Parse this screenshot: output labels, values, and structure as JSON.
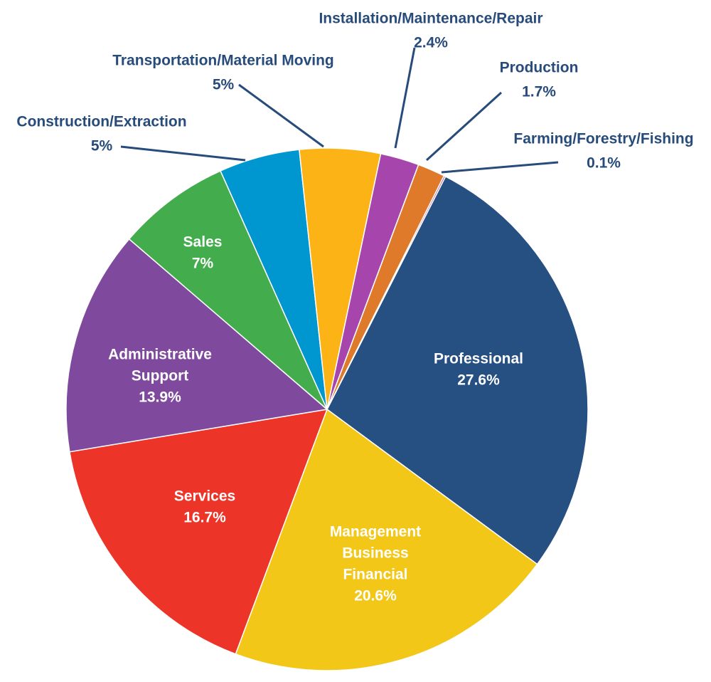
{
  "chart_data": {
    "type": "pie",
    "slices": [
      {
        "label": "Professional",
        "label_lines": [
          "Professional"
        ],
        "value": 27.6,
        "value_label": "27.6%",
        "color": "#264f82",
        "label_placement": "inside"
      },
      {
        "label": "Management Business Financial",
        "label_lines": [
          "Management",
          "Business",
          "Financial"
        ],
        "value": 20.6,
        "value_label": "20.6%",
        "color": "#f2c718",
        "label_placement": "inside"
      },
      {
        "label": "Services",
        "label_lines": [
          "Services"
        ],
        "value": 16.7,
        "value_label": "16.7%",
        "color": "#ec3528",
        "label_placement": "inside"
      },
      {
        "label": "Administrative Support",
        "label_lines": [
          "Administrative",
          "Support"
        ],
        "value": 13.9,
        "value_label": "13.9%",
        "color": "#7f4a9d",
        "label_placement": "inside"
      },
      {
        "label": "Sales",
        "label_lines": [
          "Sales"
        ],
        "value": 7,
        "value_label": "7%",
        "color": "#43ac4c",
        "label_placement": "inside"
      },
      {
        "label": "Construction/Extraction",
        "label_lines": [
          "Construction/Extraction"
        ],
        "value": 5,
        "value_label": "5%",
        "color": "#0096cf",
        "label_placement": "outside"
      },
      {
        "label": "Transportation/Material Moving",
        "label_lines": [
          "Transportation/Material Moving"
        ],
        "value": 5,
        "value_label": "5%",
        "color": "#fbb316",
        "label_placement": "outside"
      },
      {
        "label": "Installation/Maintenance/Repair",
        "label_lines": [
          "Installation/Maintenance/Repair"
        ],
        "value": 2.4,
        "value_label": "2.4%",
        "color": "#a646ad",
        "label_placement": "outside"
      },
      {
        "label": "Production",
        "label_lines": [
          "Production"
        ],
        "value": 1.7,
        "value_label": "1.7%",
        "color": "#df7a2a",
        "label_placement": "outside"
      },
      {
        "label": "Farming/Forestry/Fishing",
        "label_lines": [
          "Farming/Forestry/Fishing"
        ],
        "value": 0.1,
        "value_label": "0.1%",
        "color": "#b0409f",
        "label_placement": "outside"
      }
    ],
    "inside_label_color": "#ffffff",
    "outside_label_color": "#274b7a",
    "leader_line_color": "#274b7a",
    "slice_border_color": "#ffffff"
  }
}
